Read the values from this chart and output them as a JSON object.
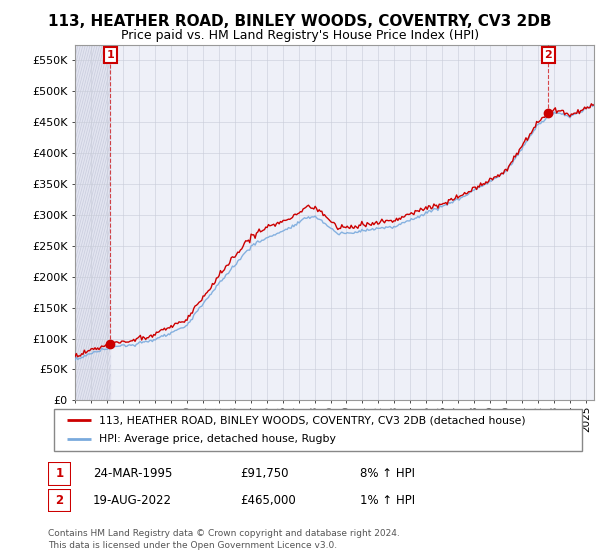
{
  "title": "113, HEATHER ROAD, BINLEY WOODS, COVENTRY, CV3 2DB",
  "subtitle": "Price paid vs. HM Land Registry's House Price Index (HPI)",
  "ylim": [
    0,
    575000
  ],
  "yticks": [
    0,
    50000,
    100000,
    150000,
    200000,
    250000,
    300000,
    350000,
    400000,
    450000,
    500000,
    550000
  ],
  "ytick_labels": [
    "£0",
    "£50K",
    "£100K",
    "£150K",
    "£200K",
    "£250K",
    "£300K",
    "£350K",
    "£400K",
    "£450K",
    "£500K",
    "£550K"
  ],
  "sale1_year": 1995.22,
  "sale1_price": 91750,
  "sale2_year": 2022.63,
  "sale2_price": 465000,
  "legend_line1": "113, HEATHER ROAD, BINLEY WOODS, COVENTRY, CV3 2DB (detached house)",
  "legend_line2": "HPI: Average price, detached house, Rugby",
  "table_row1": [
    "1",
    "24-MAR-1995",
    "£91,750",
    "8% ↑ HPI"
  ],
  "table_row2": [
    "2",
    "19-AUG-2022",
    "£465,000",
    "1% ↑ HPI"
  ],
  "footer": "Contains HM Land Registry data © Crown copyright and database right 2024.\nThis data is licensed under the Open Government Licence v3.0.",
  "line_color_red": "#cc0000",
  "line_color_blue": "#7aaadd",
  "bg_hatch_color": "#dde0ee",
  "grid_color": "#c8ccd8",
  "xmin": 1993,
  "xmax": 2025.5,
  "title_fontsize": 11,
  "subtitle_fontsize": 9
}
